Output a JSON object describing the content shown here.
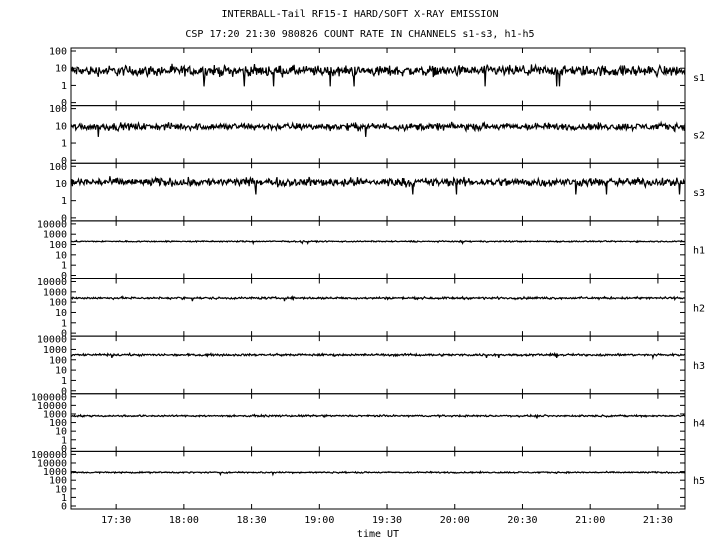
{
  "header": {
    "title": "INTERBALL-Tail RF15-I HARD/SOFT X-RAY EMISSION",
    "subtitle": "CSP 17:20 21:30 980826  COUNT RATE IN CHANNELS s1-s3, h1-h5"
  },
  "chart_data": {
    "type": "line",
    "xlabel": "time UT",
    "x_range": [
      "17:10",
      "21:42"
    ],
    "x_ticks": [
      "17:30",
      "18:00",
      "18:30",
      "19:00",
      "19:30",
      "20:00",
      "20:30",
      "21:00",
      "21:30"
    ],
    "y_scale": "log",
    "series": [
      {
        "name": "s1",
        "level": 7,
        "noise": 0.15,
        "yticks": [
          "100",
          "10",
          "1",
          "0"
        ]
      },
      {
        "name": "s2",
        "level": 9,
        "noise": 0.1,
        "yticks": [
          "100",
          "10",
          "1",
          "0"
        ]
      },
      {
        "name": "s3",
        "level": 12,
        "noise": 0.12,
        "yticks": [
          "100",
          "10",
          "1",
          "0"
        ]
      },
      {
        "name": "h1",
        "level": 200,
        "noise": 0.03,
        "yticks": [
          "10000",
          "1000",
          "100",
          "10",
          "1",
          "0"
        ]
      },
      {
        "name": "h2",
        "level": 250,
        "noise": 0.05,
        "yticks": [
          "10000",
          "1000",
          "100",
          "10",
          "1",
          "0"
        ]
      },
      {
        "name": "h3",
        "level": 300,
        "noise": 0.05,
        "yticks": [
          "10000",
          "1000",
          "100",
          "10",
          "1",
          "0"
        ]
      },
      {
        "name": "h4",
        "level": 600,
        "noise": 0.05,
        "yticks": [
          "100000",
          "10000",
          "1000",
          "100",
          "10",
          "1",
          "0"
        ]
      },
      {
        "name": "h5",
        "level": 800,
        "noise": 0.04,
        "yticks": [
          "100000",
          "10000",
          "1000",
          "100",
          "10",
          "1",
          "0"
        ]
      }
    ]
  }
}
